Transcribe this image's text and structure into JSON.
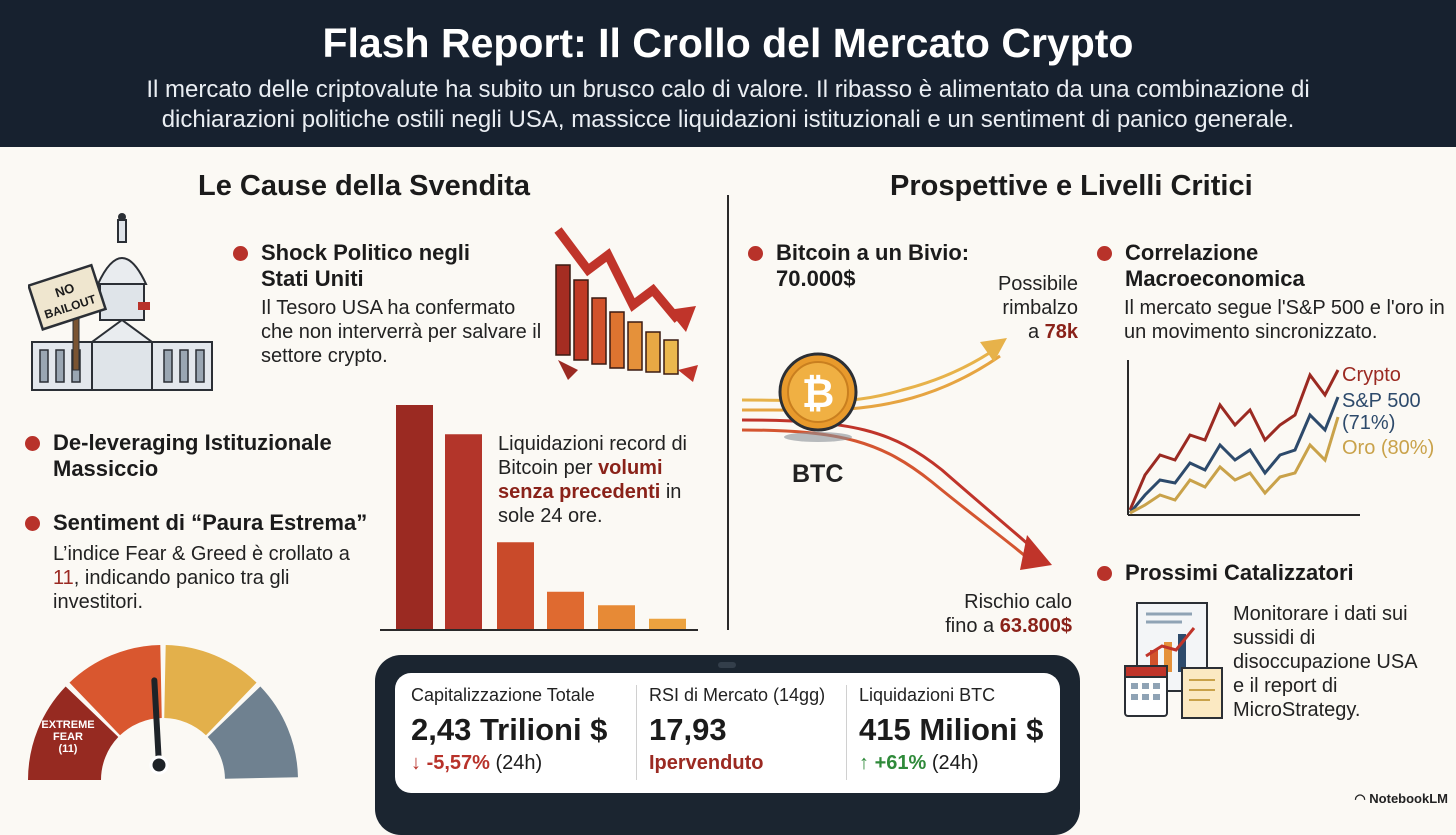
{
  "header": {
    "title": "Flash Report: Il Crollo del Mercato Crypto",
    "subtitle": "Il mercato delle criptovalute ha subito un brusco calo di valore. Il ribasso è alimentato da una combinazione di dichiarazioni politiche ostili negli USA, massicce liquidazioni istituzionali e un sentiment di panico generale."
  },
  "left": {
    "title": "Le Cause della Svendita",
    "sign": [
      "NO",
      "BAILOUT"
    ],
    "shock": {
      "title": "Shock Politico negli Stati Uniti",
      "text": "Il Tesoro USA ha confermato che non interverrà per salvare il settore crypto."
    },
    "deleveraging": {
      "title": "De-leveraging Istituzionale Massiccio"
    },
    "liquidations": {
      "text_a": "Liquidazioni record di Bitcoin per",
      "text_hl": "volumi senza precedenti",
      "text_b": "in sole 24 ore.",
      "bars": [
        1.0,
        0.87,
        0.39,
        0.17,
        0.11,
        0.05
      ]
    },
    "sentiment": {
      "title": "Sentiment di “Paura Estrema”",
      "text_a": "L’indice Fear & Greed è crollato a",
      "value": "11",
      "text_b": ", indicando panico tra gli investitori."
    },
    "gauge": {
      "label_a": "EXTREME",
      "label_b": "FEAR",
      "label_c": "(11)",
      "value": 11,
      "colors": [
        "#962a21",
        "#d9572f",
        "#e3b04b",
        "#6f8190"
      ]
    }
  },
  "right": {
    "title": "Prospettive e Livelli Critici",
    "bitcoin": {
      "title_a": "Bitcoin a un Bivio:",
      "title_b": "70.000$",
      "coin_label": "BTC",
      "up_a": "Possibile",
      "up_b": "rimbalzo",
      "up_c": "a",
      "up_val": "78k",
      "down_a": "Rischio calo",
      "down_b": "fino a",
      "down_val": "63.800$"
    },
    "correlation": {
      "title": "Correlazione Macroeconomica",
      "text": "Il mercato segue l'S&P 500 e l'oro in un movimento sincronizzato.",
      "legend": [
        "Crypto",
        "S&P 500",
        "(71%)",
        "Oro (80%)"
      ],
      "colors": [
        "#9b2a22",
        "#2d4a6b",
        "#c9a24a"
      ]
    },
    "catalysts": {
      "title": "Prossimi Catalizzatori",
      "text": "Monitorare i dati sui sussidi di disoccupazione USA e il report di MicroStrategy."
    }
  },
  "stats": [
    {
      "label": "Capitalizzazione Totale",
      "value": "2,43 Trilioni $",
      "arrow": "↓",
      "change": "-5,57%",
      "period": "(24h)"
    },
    {
      "label": "RSI di Mercato (14gg)",
      "value": "17,93",
      "note": "Ipervenduto"
    },
    {
      "label": "Liquidazioni BTC",
      "value": "415 Milioni $",
      "arrow": "↑",
      "change": "+61%",
      "period": "(24h)"
    }
  ],
  "watermark": "NotebookLM"
}
